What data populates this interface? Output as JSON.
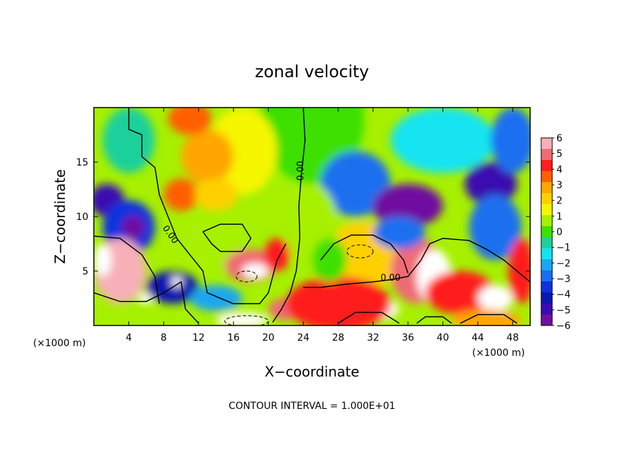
{
  "chart_data": {
    "type": "heatmap",
    "title": "zonal velocity",
    "xlabel": "X−coordinate",
    "ylabel": "Z−coordinate",
    "x_unit": "(×1000 m)",
    "z_unit": "(×1000 m)",
    "xlim": [
      0,
      50
    ],
    "ylim": [
      0,
      20
    ],
    "x_ticks": [
      4,
      8,
      12,
      16,
      20,
      24,
      28,
      32,
      36,
      40,
      44,
      48
    ],
    "y_ticks": [
      5,
      10,
      15
    ],
    "colorbar": {
      "range": [
        -6,
        6
      ],
      "ticks": [
        "6",
        "5",
        "4",
        "3",
        "2",
        "1",
        "0",
        "−1",
        "−2",
        "−3",
        "−4",
        "−5",
        "−6"
      ],
      "colors": [
        "#f7b0b8",
        "#ef6a74",
        "#ff1e1e",
        "#ff5f00",
        "#ffa600",
        "#ffd000",
        "#f6f600",
        "#a6f000",
        "#3ee000",
        "#1fd09b",
        "#12e4f0",
        "#1aa6f0",
        "#1a6ff0",
        "#1030e0",
        "#0a18b0",
        "#3a0cb0",
        "#7010a0"
      ]
    },
    "contour_labels": [
      {
        "text": "0.00",
        "x": 24,
        "z": 14.2
      },
      {
        "text": "0.00",
        "x": 8.5,
        "z": 8.2
      },
      {
        "text": "0.00",
        "x": 34,
        "z": 4.1
      }
    ],
    "footnote": "CONTOUR INTERVAL = 1.000E+01",
    "field_blobs": [
      {
        "x": 25,
        "z": 19,
        "v": 0.2,
        "rx": 6,
        "rz": 6
      },
      {
        "x": 17,
        "z": 16,
        "v": 1.2,
        "rx": 4,
        "rz": 4
      },
      {
        "x": 13,
        "z": 15.5,
        "v": 3.0,
        "rx": 3,
        "rz": 2.5
      },
      {
        "x": 10,
        "z": 12,
        "v": 3.2,
        "rx": 2,
        "rz": 1.5
      },
      {
        "x": 14,
        "z": 12,
        "v": 2.0,
        "rx": 2.5,
        "rz": 1.5
      },
      {
        "x": 11,
        "z": 19,
        "v": 3.5,
        "rx": 2.5,
        "rz": 1.5
      },
      {
        "x": 4,
        "z": 17,
        "v": -0.5,
        "rx": 3,
        "rz": 3
      },
      {
        "x": 1.5,
        "z": 11.5,
        "v": -5.0,
        "rx": 2,
        "rz": 1.5
      },
      {
        "x": 4,
        "z": 9,
        "v": -3.5,
        "rx": 3,
        "rz": 2.5
      },
      {
        "x": 40,
        "z": 17,
        "v": -1.5,
        "rx": 6,
        "rz": 3
      },
      {
        "x": 30,
        "z": 13,
        "v": -2.5,
        "rx": 4,
        "rz": 3
      },
      {
        "x": 36,
        "z": 11,
        "v": -5.5,
        "rx": 4,
        "rz": 2
      },
      {
        "x": 34,
        "z": 10.5,
        "v": -6.5,
        "rx": 2,
        "rz": 1
      },
      {
        "x": 45.5,
        "z": 13,
        "v": -5.0,
        "rx": 3,
        "rz": 2
      },
      {
        "x": 46,
        "z": 7,
        "v": -5.5,
        "rx": 2,
        "rz": 1
      },
      {
        "x": 46,
        "z": 9,
        "v": -3.0,
        "rx": 3,
        "rz": 3
      },
      {
        "x": 48,
        "z": 17,
        "v": -2.5,
        "rx": 2.5,
        "rz": 3
      },
      {
        "x": 4.5,
        "z": 9,
        "v": -8.0,
        "rx": 1.3,
        "rz": 1.1
      },
      {
        "x": 3,
        "z": 5,
        "v": 5.5,
        "rx": 3,
        "rz": 3
      },
      {
        "x": 1,
        "z": 6,
        "v": 8.0,
        "rx": 1,
        "rz": 1.5
      },
      {
        "x": 6,
        "z": 2.5,
        "v": 8.0,
        "rx": 1,
        "rz": 0.5
      },
      {
        "x": 9,
        "z": 3.5,
        "v": -4.0,
        "rx": 3,
        "rz": 1.5
      },
      {
        "x": 12,
        "z": 8,
        "v": 0.5,
        "rx": 2,
        "rz": 2
      },
      {
        "x": 15,
        "z": 6.5,
        "v": 1.0,
        "rx": 2.5,
        "rz": 1.5
      },
      {
        "x": 18,
        "z": 5.5,
        "v": 5.0,
        "rx": 3,
        "rz": 1.5
      },
      {
        "x": 18.5,
        "z": 5,
        "v": 8.0,
        "rx": 1.5,
        "rz": 0.7
      },
      {
        "x": 21,
        "z": 6.5,
        "v": 4.0,
        "rx": 1.5,
        "rz": 1.5
      },
      {
        "x": 9.5,
        "z": 4,
        "v": 8.0,
        "rx": 0.6,
        "rz": 0.5
      },
      {
        "x": 14,
        "z": 2.5,
        "v": -2.0,
        "rx": 3,
        "rz": 1.2
      },
      {
        "x": 17,
        "z": 0.5,
        "v": 8.0,
        "rx": 3,
        "rz": 0.7
      },
      {
        "x": 22,
        "z": 1.5,
        "v": 5.0,
        "rx": 2,
        "rz": 1
      },
      {
        "x": 31,
        "z": 6,
        "v": 8.0,
        "rx": 3,
        "rz": 1.7
      },
      {
        "x": 31,
        "z": 6.5,
        "v": 2.0,
        "rx": 5,
        "rz": 3
      },
      {
        "x": 31,
        "z": 1.5,
        "v": 8.0,
        "rx": 4,
        "rz": 1.2
      },
      {
        "x": 28,
        "z": 2,
        "v": 4.0,
        "rx": 6,
        "rz": 2.5
      },
      {
        "x": 37,
        "z": 5,
        "v": 5.0,
        "rx": 3,
        "rz": 3
      },
      {
        "x": 39,
        "z": 4.5,
        "v": 8.0,
        "rx": 2,
        "rz": 2.5
      },
      {
        "x": 42,
        "z": 3,
        "v": 4.0,
        "rx": 4,
        "rz": 2
      },
      {
        "x": 46,
        "z": 2.5,
        "v": 8.0,
        "rx": 2,
        "rz": 1.2
      },
      {
        "x": 45,
        "z": 0.5,
        "v": 3.0,
        "rx": 4,
        "rz": 1
      },
      {
        "x": 49,
        "z": 5,
        "v": 4.0,
        "rx": 1.5,
        "rz": 3
      },
      {
        "x": 35,
        "z": 8.5,
        "v": -3.0,
        "rx": 3,
        "rz": 1.5
      },
      {
        "x": 25,
        "z": 9,
        "v": 0.5,
        "rx": 3,
        "rz": 4
      },
      {
        "x": 27,
        "z": 6,
        "v": 0.0,
        "rx": 2,
        "rz": 2
      }
    ],
    "contour_lines": [
      {
        "style": "solid",
        "points": [
          [
            24,
            20
          ],
          [
            24.2,
            17
          ],
          [
            23.8,
            14
          ],
          [
            23.5,
            11
          ],
          [
            23.6,
            8
          ],
          [
            23.2,
            5
          ],
          [
            22.5,
            3
          ],
          [
            21.5,
            1.5
          ],
          [
            20.5,
            0.3
          ]
        ]
      },
      {
        "style": "solid",
        "points": [
          [
            4,
            20
          ],
          [
            4,
            18
          ],
          [
            5.5,
            17.5
          ],
          [
            5.5,
            15.5
          ],
          [
            7,
            14.5
          ],
          [
            7.5,
            12
          ],
          [
            8.5,
            10
          ],
          [
            9.5,
            8
          ],
          [
            11,
            6.5
          ],
          [
            12.5,
            5
          ],
          [
            13,
            3
          ],
          [
            16,
            2
          ],
          [
            19,
            2
          ],
          [
            20,
            3
          ],
          [
            20.5,
            4.5
          ],
          [
            21,
            6
          ],
          [
            22,
            7.5
          ]
        ]
      },
      {
        "style": "solid",
        "points": [
          [
            0,
            3
          ],
          [
            3,
            2.2
          ],
          [
            6,
            2.2
          ],
          [
            8,
            3
          ],
          [
            10,
            4
          ],
          [
            10.5,
            1.5
          ],
          [
            12,
            0.2
          ]
        ]
      },
      {
        "style": "solid",
        "points": [
          [
            0,
            8.2
          ],
          [
            3,
            8
          ],
          [
            5.5,
            6.5
          ],
          [
            7,
            4.5
          ],
          [
            7.5,
            2
          ]
        ]
      },
      {
        "style": "solid",
        "points": [
          [
            24,
            3.5
          ],
          [
            26,
            3.5
          ],
          [
            29,
            3.8
          ],
          [
            32,
            4
          ],
          [
            34,
            4.2
          ],
          [
            36,
            4.5
          ],
          [
            37.5,
            6
          ],
          [
            38.5,
            7.5
          ],
          [
            40,
            8
          ],
          [
            43,
            7.8
          ],
          [
            45,
            7
          ],
          [
            47,
            6
          ],
          [
            48.5,
            5
          ],
          [
            50,
            4
          ]
        ]
      },
      {
        "style": "solid",
        "points": [
          [
            26,
            6
          ],
          [
            27.5,
            7.5
          ],
          [
            29.5,
            8.3
          ],
          [
            32,
            8.3
          ],
          [
            34,
            7.5
          ],
          [
            35.5,
            6
          ],
          [
            36,
            4.8
          ]
        ]
      },
      {
        "style": "solid",
        "points": [
          [
            28,
            0.2
          ],
          [
            30,
            1.2
          ],
          [
            33,
            1.2
          ],
          [
            35,
            0.2
          ]
        ]
      },
      {
        "style": "solid",
        "points": [
          [
            37,
            0.2
          ],
          [
            38,
            0.8
          ],
          [
            40,
            0.8
          ],
          [
            41,
            0.2
          ]
        ]
      },
      {
        "style": "solid",
        "points": [
          [
            42,
            0.2
          ],
          [
            44,
            1
          ],
          [
            47,
            1
          ],
          [
            48.5,
            0.2
          ]
        ]
      },
      {
        "style": "solid",
        "points": [
          [
            12.5,
            8.6
          ],
          [
            14.5,
            9.3
          ],
          [
            17,
            9.3
          ],
          [
            18,
            8
          ],
          [
            17,
            6.8
          ],
          [
            14.5,
            6.8
          ],
          [
            13.5,
            7.5
          ],
          [
            12.5,
            8.6
          ]
        ]
      }
    ],
    "dashed_ellipses": [
      {
        "x": 30.5,
        "z": 6.8,
        "rx": 1.5,
        "rz": 0.6
      },
      {
        "x": 17.5,
        "z": 4.5,
        "rx": 1.2,
        "rz": 0.5
      },
      {
        "x": 17.5,
        "z": 0.4,
        "rx": 2.5,
        "rz": 0.5
      }
    ]
  }
}
